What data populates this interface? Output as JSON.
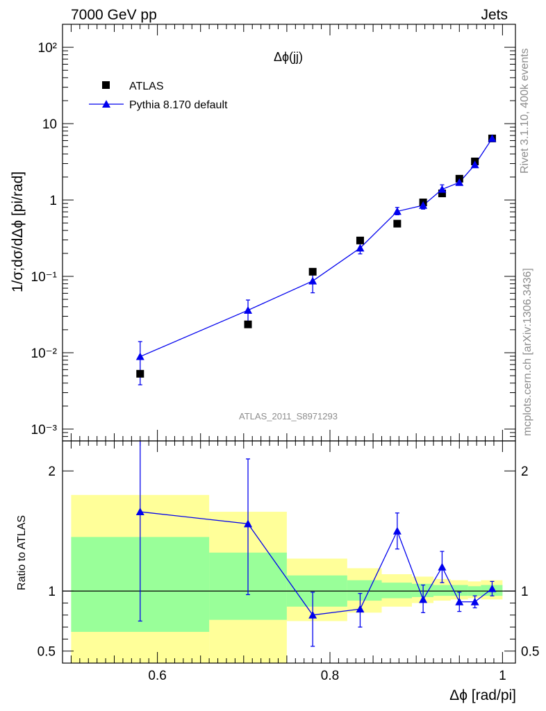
{
  "header": {
    "left": "7000 GeV pp",
    "right": "Jets"
  },
  "side_labels": {
    "top": "Rivet 3.1.10,  400k events",
    "bottom": "mcplots.cern.ch [arXiv:1306.3436]"
  },
  "chart_data": [
    {
      "type": "scatter",
      "title": "Δϕ(jj)",
      "ylabel": "1/σ;dσ/dΔϕ [pi/rad]",
      "yscale": "log",
      "ylim": [
        0.0007,
        200
      ],
      "xlim": [
        0.49,
        1.015
      ],
      "y_ticks": [
        "10⁻³",
        "10⁻²",
        "10⁻¹",
        "1",
        "10",
        "10²"
      ],
      "y_tick_values": [
        0.001,
        0.01,
        0.1,
        1,
        10,
        100
      ],
      "watermark": "ATLAS_2011_S8971293",
      "legend_position": "top-left",
      "series": [
        {
          "name": "ATLAS",
          "marker": "square",
          "color": "#000000",
          "x": [
            0.58,
            0.705,
            0.78,
            0.835,
            0.878,
            0.908,
            0.93,
            0.95,
            0.968,
            0.988
          ],
          "y": [
            0.0053,
            0.0235,
            0.115,
            0.295,
            0.49,
            0.93,
            1.22,
            1.9,
            3.2,
            6.4
          ]
        },
        {
          "name": "Pythia 8.170 default",
          "marker": "triangle",
          "color": "#0000ee",
          "x": [
            0.58,
            0.705,
            0.78,
            0.835,
            0.878,
            0.908,
            0.93,
            0.95,
            0.968,
            0.988
          ],
          "y": [
            0.0089,
            0.036,
            0.087,
            0.235,
            0.71,
            0.85,
            1.38,
            1.7,
            2.9,
            6.4
          ],
          "err_lo": [
            0.0038,
            0.0238,
            0.061,
            0.197,
            0.64,
            0.76,
            1.25,
            1.6,
            2.75,
            6.15
          ],
          "err_hi": [
            0.014,
            0.049,
            0.114,
            0.272,
            0.8,
            0.96,
            1.58,
            1.82,
            3.05,
            6.65
          ]
        }
      ]
    },
    {
      "type": "line",
      "ylabel": "Ratio to ATLAS",
      "xlabel": "Δϕ [rad/pi]",
      "xlim": [
        0.49,
        1.015
      ],
      "ylim": [
        0.4,
        2.25
      ],
      "x_ticks": [
        "0.6",
        "0.8",
        "1"
      ],
      "x_tick_values": [
        0.6,
        0.8,
        1.0
      ],
      "y_ticks": [
        "0.5",
        "1",
        "2"
      ],
      "y_tick_values": [
        0.5,
        1,
        2
      ],
      "bands": {
        "edges": [
          0.5,
          0.66,
          0.75,
          0.82,
          0.86,
          0.895,
          0.92,
          0.94,
          0.96,
          0.975,
          1.0
        ],
        "yellow": {
          "color": "#ffff99",
          "low": [
            0.35,
            0.38,
            0.75,
            0.82,
            0.87,
            0.9,
            0.92,
            0.93,
            0.94,
            0.93
          ],
          "high": [
            1.8,
            1.66,
            1.27,
            1.19,
            1.14,
            1.12,
            1.1,
            1.09,
            1.08,
            1.09
          ]
        },
        "green": {
          "color": "#99ff99",
          "low": [
            0.66,
            0.76,
            0.87,
            0.92,
            0.94,
            0.95,
            0.96,
            0.96,
            0.96,
            0.96
          ],
          "high": [
            1.45,
            1.32,
            1.13,
            1.09,
            1.07,
            1.06,
            1.05,
            1.05,
            1.04,
            1.05
          ]
        }
      },
      "series": [
        {
          "name": "Pythia 8.170 default",
          "color": "#0000ee",
          "x": [
            0.58,
            0.705,
            0.78,
            0.835,
            0.878,
            0.908,
            0.93,
            0.95,
            0.968,
            0.988
          ],
          "y": [
            1.66,
            1.56,
            0.8,
            0.85,
            1.5,
            0.93,
            1.2,
            0.91,
            0.91,
            1.02
          ],
          "err_lo": [
            0.75,
            0.97,
            0.54,
            0.7,
            1.35,
            0.82,
            1.07,
            0.83,
            0.86,
            0.96
          ],
          "err_hi": [
            2.35,
            2.1,
            0.99,
            0.98,
            1.65,
            1.05,
            1.33,
            0.99,
            0.96,
            1.08
          ]
        }
      ]
    }
  ]
}
